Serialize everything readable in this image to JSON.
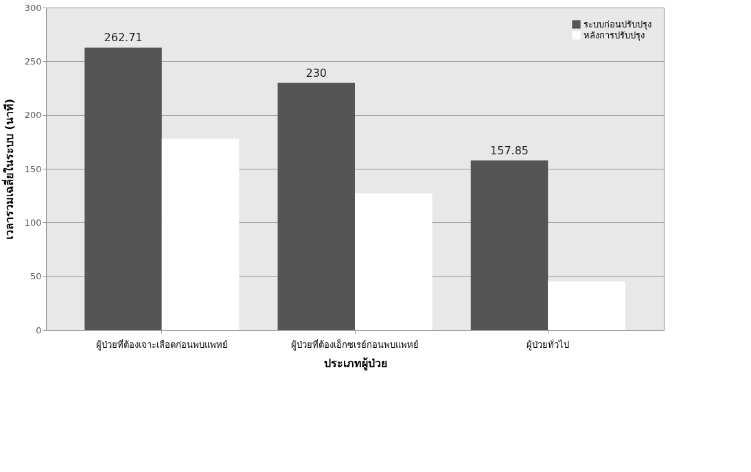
{
  "chart_data": {
    "type": "bar",
    "xlabel": "ประเภทผู้ป่วย",
    "ylabel": "เวลารวมเฉลี่ยในระบบ (นาที)",
    "categories": [
      "ผู้ป่วยที่ต้องเจาะเลือดก่อนพบแพทย์",
      "ผู้ป่วยที่ต้องเอ็กซเรย์ก่อนพบแพทย์",
      "ผู้ป่วยทั่วไป"
    ],
    "series": [
      {
        "name": "ระบบก่อนปรับปรุง",
        "color": "#555555",
        "values": [
          262.71,
          230,
          157.85
        ],
        "value_labels": [
          "262.71",
          "230",
          "157.85"
        ]
      },
      {
        "name": "หลังการปรับปรุง",
        "color": "#ffffff",
        "values": [
          178,
          127,
          45
        ]
      }
    ],
    "ylim": [
      0,
      300
    ],
    "yticks": [
      0,
      50,
      100,
      150,
      200,
      250,
      300
    ],
    "grid": "y",
    "legend": "top right"
  }
}
